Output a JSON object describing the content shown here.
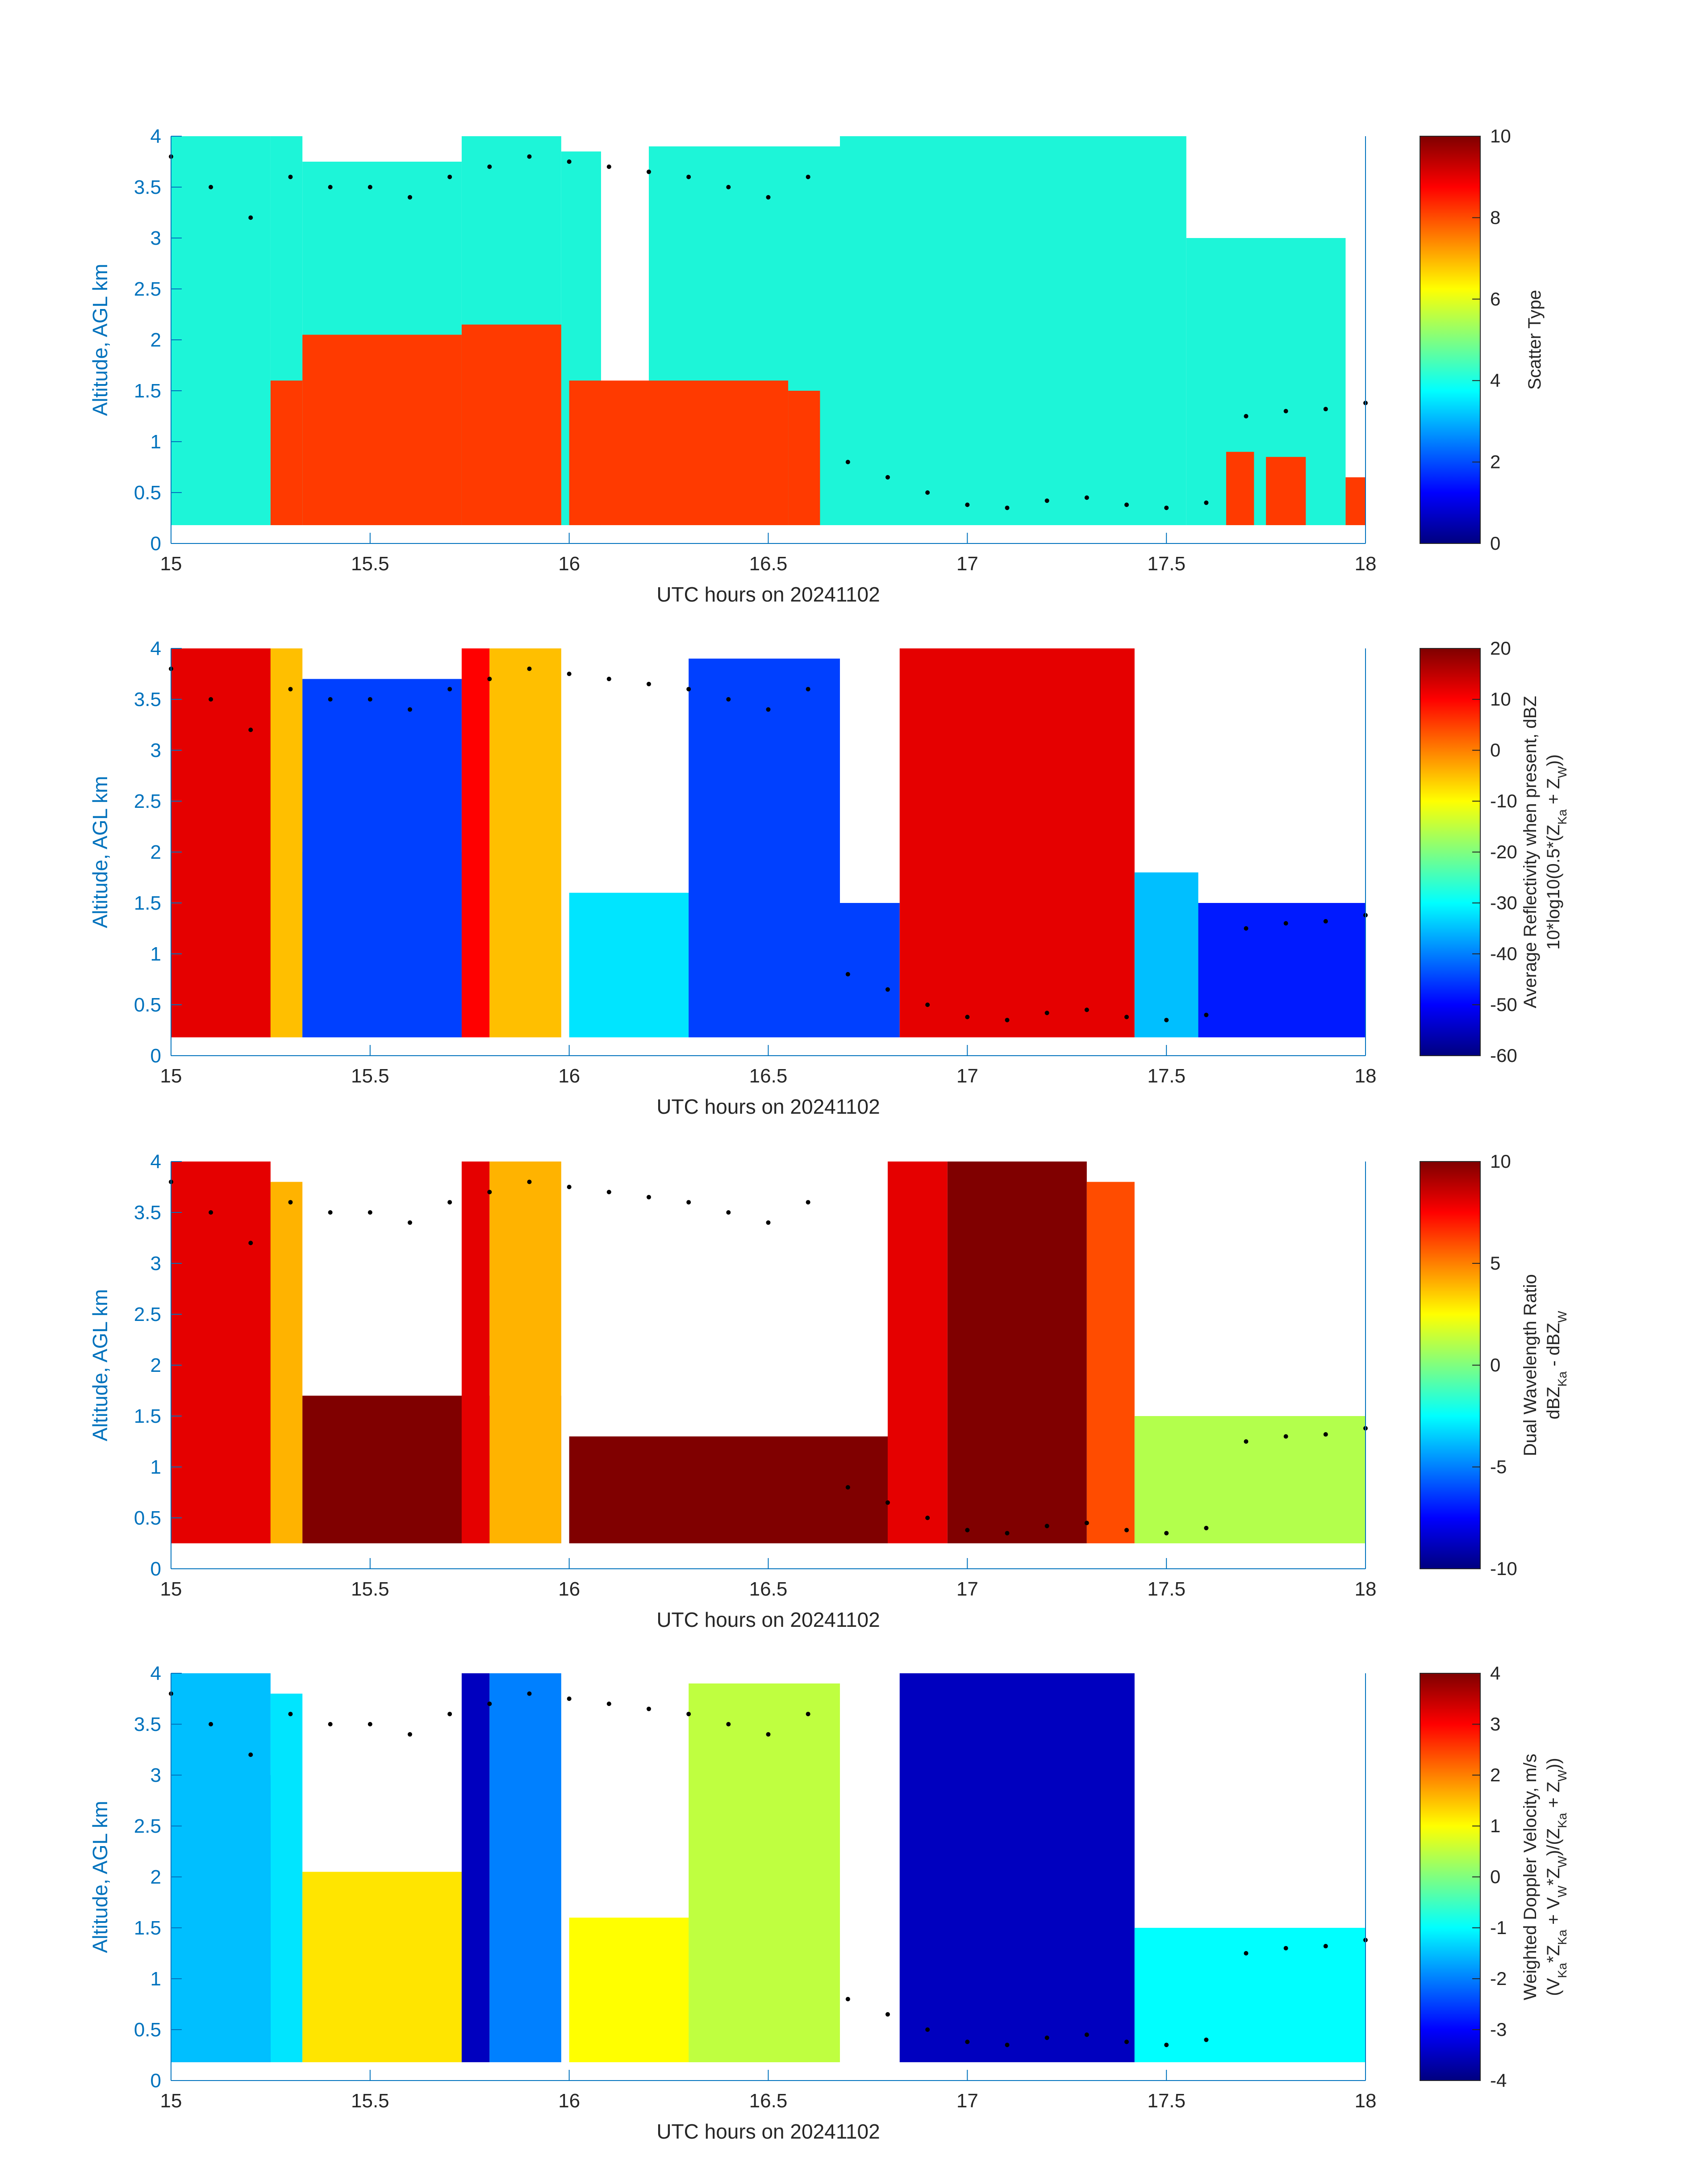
{
  "figure": {
    "date": "20241102"
  },
  "colors": {
    "axis": "#0072BD",
    "tick_text": "#262626",
    "marker": "#000000",
    "scatter_clear": "#1DF5D8",
    "scatter_precip": "#FF3A00"
  },
  "chart_data": [
    {
      "type": "heatmap",
      "id": "scatter-type",
      "xlabel": "UTC hours on 20241102",
      "ylabel": "Altitude, AGL km",
      "xlim": [
        15,
        18
      ],
      "ylim": [
        0,
        4
      ],
      "xticks": [
        "15",
        "15.5",
        "16",
        "16.5",
        "17",
        "17.5",
        "18"
      ],
      "yticks": [
        "0",
        "0.5",
        "1",
        "1.5",
        "2",
        "2.5",
        "3",
        "3.5",
        "4"
      ],
      "colorbar": {
        "label_lines": [
          "Scatter Type"
        ],
        "range": [
          0,
          10
        ],
        "ticks": [
          "0",
          "2",
          "4",
          "6",
          "8",
          "10"
        ]
      },
      "cloud_regions": [
        {
          "start": 15.0,
          "end": 15.25,
          "top": 4.0
        },
        {
          "start": 15.25,
          "end": 15.33,
          "top": 4.0
        },
        {
          "start": 15.33,
          "end": 15.73,
          "top": 3.75
        },
        {
          "start": 15.73,
          "end": 15.98,
          "top": 4.0
        },
        {
          "start": 15.98,
          "end": 16.08,
          "top": 3.85
        },
        {
          "start": 16.2,
          "end": 16.68,
          "top": 3.9
        },
        {
          "start": 16.68,
          "end": 17.55,
          "top": 4.0
        },
        {
          "start": 17.55,
          "end": 17.95,
          "top": 3.0
        }
      ],
      "precip_regions": [
        {
          "start": 15.25,
          "end": 15.33,
          "top": 1.6
        },
        {
          "start": 15.33,
          "end": 15.73,
          "top": 2.05
        },
        {
          "start": 15.73,
          "end": 15.98,
          "top": 2.15
        },
        {
          "start": 16.0,
          "end": 16.55,
          "top": 1.6
        },
        {
          "start": 16.55,
          "end": 16.63,
          "top": 1.5
        },
        {
          "start": 17.65,
          "end": 17.72,
          "top": 0.9
        },
        {
          "start": 17.75,
          "end": 17.85,
          "top": 0.85
        },
        {
          "start": 17.95,
          "end": 18.0,
          "top": 0.65
        }
      ]
    },
    {
      "type": "heatmap",
      "id": "average-reflectivity",
      "xlabel": "UTC hours on 20241102",
      "ylabel": "Altitude, AGL km",
      "xlim": [
        15,
        18
      ],
      "ylim": [
        0,
        4
      ],
      "xticks": [
        "15",
        "15.5",
        "16",
        "16.5",
        "17",
        "17.5",
        "18"
      ],
      "yticks": [
        "0",
        "0.5",
        "1",
        "1.5",
        "2",
        "2.5",
        "3",
        "3.5",
        "4"
      ],
      "colorbar": {
        "label_lines": [
          "Average Reflectivity when present, dBZ",
          "10*log10(0.5*(Z_Ka + Z_W))"
        ],
        "range": [
          -60,
          20
        ],
        "ticks": [
          "-60",
          "-50",
          "-40",
          "-30",
          "-20",
          "-10",
          "0",
          "10",
          "20"
        ]
      },
      "regions": [
        {
          "start": 15.0,
          "end": 15.25,
          "top": 4.0,
          "value": 12
        },
        {
          "start": 15.25,
          "end": 15.33,
          "top": 4.0,
          "value": -5
        },
        {
          "start": 15.33,
          "end": 15.73,
          "top": 2.0,
          "value": -35
        },
        {
          "start": 15.33,
          "end": 15.73,
          "top": 3.7,
          "value": -45
        },
        {
          "start": 15.73,
          "end": 15.8,
          "top": 4.0,
          "value": 10
        },
        {
          "start": 15.8,
          "end": 15.98,
          "top": 4.0,
          "value": -5
        },
        {
          "start": 16.0,
          "end": 16.6,
          "top": 1.6,
          "value": -32
        },
        {
          "start": 16.3,
          "end": 16.68,
          "top": 3.9,
          "value": -45
        },
        {
          "start": 16.68,
          "end": 16.83,
          "top": 1.5,
          "value": -45
        },
        {
          "start": 16.83,
          "end": 17.42,
          "top": 4.0,
          "value": 12
        },
        {
          "start": 17.42,
          "end": 17.58,
          "top": 1.8,
          "value": -35
        },
        {
          "start": 17.58,
          "end": 18.0,
          "top": 1.5,
          "value": -48
        }
      ]
    },
    {
      "type": "heatmap",
      "id": "dual-wavelength-ratio",
      "xlabel": "UTC hours on 20241102",
      "ylabel": "Altitude, AGL km",
      "xlim": [
        15,
        18
      ],
      "ylim": [
        0,
        4
      ],
      "xticks": [
        "15",
        "15.5",
        "16",
        "16.5",
        "17",
        "17.5",
        "18"
      ],
      "yticks": [
        "0",
        "0.5",
        "1",
        "1.5",
        "2",
        "2.5",
        "3",
        "3.5",
        "4"
      ],
      "colorbar": {
        "label_lines": [
          "Dual Wavelength Ratio",
          "dBZ_Ka - dBZ_W"
        ],
        "range": [
          -10,
          10
        ],
        "ticks": [
          "-10",
          "-5",
          "0",
          "5",
          "10"
        ]
      },
      "regions": [
        {
          "start": 15.0,
          "end": 15.25,
          "top": 4.0,
          "value": 8
        },
        {
          "start": 15.25,
          "end": 15.33,
          "top": 3.8,
          "value": 4
        },
        {
          "start": 15.33,
          "end": 15.98,
          "top": 1.7,
          "value": 10
        },
        {
          "start": 15.73,
          "end": 15.8,
          "top": 4.0,
          "value": 8
        },
        {
          "start": 15.8,
          "end": 15.98,
          "top": 4.0,
          "value": 4
        },
        {
          "start": 16.0,
          "end": 16.8,
          "top": 1.3,
          "value": 10
        },
        {
          "start": 16.8,
          "end": 16.95,
          "top": 4.0,
          "value": 8
        },
        {
          "start": 16.95,
          "end": 17.3,
          "top": 4.0,
          "value": 10
        },
        {
          "start": 17.3,
          "end": 17.42,
          "top": 3.8,
          "value": 6
        },
        {
          "start": 17.42,
          "end": 18.0,
          "top": 1.5,
          "value": 1
        }
      ]
    },
    {
      "type": "heatmap",
      "id": "weighted-doppler-velocity",
      "xlabel": "UTC hours on 20241102",
      "ylabel": "Altitude, AGL km",
      "xlim": [
        15,
        18
      ],
      "ylim": [
        0,
        4
      ],
      "xticks": [
        "15",
        "15.5",
        "16",
        "16.5",
        "17",
        "17.5",
        "18"
      ],
      "yticks": [
        "0",
        "0.5",
        "1",
        "1.5",
        "2",
        "2.5",
        "3",
        "3.5",
        "4"
      ],
      "colorbar": {
        "label_lines": [
          "Weighted Doppler Velocity, m/s",
          "(V_Ka*Z_Ka + V_W*Z_W)/(Z_Ka + Z_W))"
        ],
        "range": [
          -4,
          4
        ],
        "ticks": [
          "-4",
          "-3",
          "-2",
          "-1",
          "0",
          "1",
          "2",
          "3",
          "4"
        ]
      },
      "regions": [
        {
          "start": 15.0,
          "end": 15.25,
          "top": 3.0,
          "value": -3.6
        },
        {
          "start": 15.0,
          "end": 15.25,
          "top": 4.0,
          "value": -1.5
        },
        {
          "start": 15.25,
          "end": 15.33,
          "top": 3.8,
          "value": -1.2
        },
        {
          "start": 15.33,
          "end": 15.73,
          "top": 2.05,
          "value": 1.2
        },
        {
          "start": 15.73,
          "end": 15.8,
          "top": 4.0,
          "value": -3.5
        },
        {
          "start": 15.8,
          "end": 15.98,
          "top": 4.0,
          "value": -2
        },
        {
          "start": 16.0,
          "end": 16.6,
          "top": 1.6,
          "value": 1.0
        },
        {
          "start": 16.3,
          "end": 16.68,
          "top": 3.9,
          "value": 0.5
        },
        {
          "start": 16.83,
          "end": 17.42,
          "top": 4.0,
          "value": -3.5
        },
        {
          "start": 17.42,
          "end": 18.0,
          "top": 1.5,
          "value": -1.0
        }
      ]
    }
  ],
  "marker_track": {
    "times": [
      15.0,
      15.1,
      15.2,
      15.3,
      15.4,
      15.5,
      15.6,
      15.7,
      15.8,
      15.9,
      16.0,
      16.1,
      16.2,
      16.3,
      16.4,
      16.5,
      16.6,
      16.7,
      16.8,
      16.9,
      17.0,
      17.1,
      17.2,
      17.3,
      17.4,
      17.5,
      17.6,
      17.7,
      17.8,
      17.9,
      18.0
    ],
    "altitudes": [
      3.8,
      3.5,
      3.2,
      3.6,
      3.5,
      3.5,
      3.4,
      3.6,
      3.7,
      3.8,
      3.75,
      3.7,
      3.65,
      3.6,
      3.5,
      3.4,
      3.6,
      0.8,
      0.65,
      0.5,
      0.38,
      0.35,
      0.42,
      0.45,
      0.38,
      0.35,
      0.4,
      1.25,
      1.3,
      1.32,
      1.38
    ]
  }
}
